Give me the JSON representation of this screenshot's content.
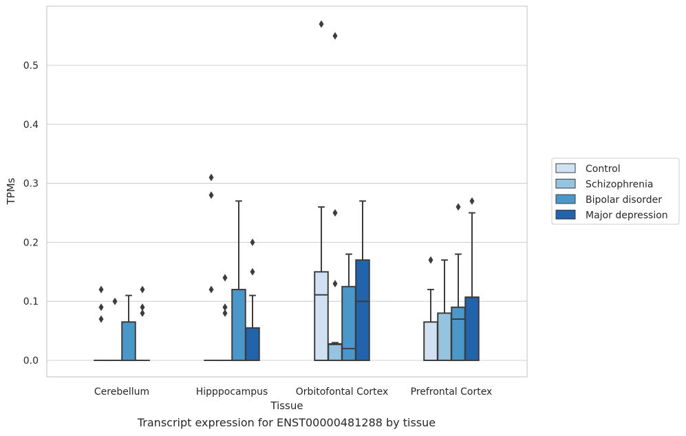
{
  "caption": "Transcript expression for ENST00000481288 by tissue",
  "chart_data": {
    "type": "box",
    "title": "",
    "xlabel": "Tissue",
    "ylabel": "TPMs",
    "ylim": [
      -0.028,
      0.6
    ],
    "yticks": [
      0.0,
      0.1,
      0.2,
      0.3,
      0.4,
      0.5
    ],
    "ytick_labels": [
      "0.0",
      "0.1",
      "0.2",
      "0.3",
      "0.4",
      "0.5"
    ],
    "grid": "horizontal",
    "legend_position": "right",
    "categories": [
      "Cerebellum",
      "Hipppocampus",
      "Orbitofontal Cortex",
      "Prefrontal Cortex"
    ],
    "series": [
      {
        "name": "Control",
        "color": "#d0e1f2",
        "boxes": [
          {
            "q1": 0,
            "median": 0,
            "q3": 0,
            "whisker_low": 0,
            "whisker_high": 0,
            "fliers": [
              0.12,
              0.09,
              0.07
            ]
          },
          {
            "q1": 0,
            "median": 0,
            "q3": 0,
            "whisker_low": 0,
            "whisker_high": 0,
            "fliers": [
              0.31,
              0.28,
              0.12
            ]
          },
          {
            "q1": 0,
            "median": 0.111,
            "q3": 0.15,
            "whisker_low": 0,
            "whisker_high": 0.26,
            "fliers": [
              0.57
            ]
          },
          {
            "q1": 0,
            "median": 0,
            "q3": 0.065,
            "whisker_low": 0,
            "whisker_high": 0.12,
            "fliers": [
              0.17
            ]
          }
        ]
      },
      {
        "name": "Schizophrenia",
        "color": "#94c4df",
        "boxes": [
          {
            "q1": 0,
            "median": 0,
            "q3": 0,
            "whisker_low": 0,
            "whisker_high": 0,
            "fliers": [
              0.1
            ]
          },
          {
            "q1": 0,
            "median": 0,
            "q3": 0,
            "whisker_low": 0,
            "whisker_high": 0,
            "fliers": [
              0.14,
              0.09,
              0.08
            ]
          },
          {
            "q1": 0,
            "median": 0.027,
            "q3": 0.028,
            "whisker_low": 0,
            "whisker_high": 0.03,
            "fliers": [
              0.55,
              0.25,
              0.13
            ]
          },
          {
            "q1": 0,
            "median": 0,
            "q3": 0.08,
            "whisker_low": 0,
            "whisker_high": 0.17,
            "fliers": []
          }
        ]
      },
      {
        "name": "Bipolar disorder",
        "color": "#4a98c9",
        "boxes": [
          {
            "q1": 0,
            "median": 0,
            "q3": 0.065,
            "whisker_low": 0,
            "whisker_high": 0.11,
            "fliers": []
          },
          {
            "q1": 0,
            "median": 0,
            "q3": 0.12,
            "whisker_low": 0,
            "whisker_high": 0.27,
            "fliers": []
          },
          {
            "q1": 0,
            "median": 0.02,
            "q3": 0.125,
            "whisker_low": 0,
            "whisker_high": 0.18,
            "fliers": []
          },
          {
            "q1": 0,
            "median": 0.07,
            "q3": 0.09,
            "whisker_low": 0,
            "whisker_high": 0.18,
            "fliers": [
              0.26
            ]
          }
        ]
      },
      {
        "name": "Major depression",
        "color": "#2164ab",
        "boxes": [
          {
            "q1": 0,
            "median": 0,
            "q3": 0,
            "whisker_low": 0,
            "whisker_high": 0,
            "fliers": [
              0.12,
              0.09,
              0.08
            ]
          },
          {
            "q1": 0,
            "median": 0,
            "q3": 0.055,
            "whisker_low": 0,
            "whisker_high": 0.11,
            "fliers": [
              0.2,
              0.15
            ]
          },
          {
            "q1": 0,
            "median": 0.1,
            "q3": 0.17,
            "whisker_low": 0,
            "whisker_high": 0.27,
            "fliers": []
          },
          {
            "q1": 0,
            "median": 0.107,
            "q3": 0.107,
            "whisker_low": 0,
            "whisker_high": 0.25,
            "fliers": [
              0.27
            ]
          }
        ]
      }
    ]
  }
}
